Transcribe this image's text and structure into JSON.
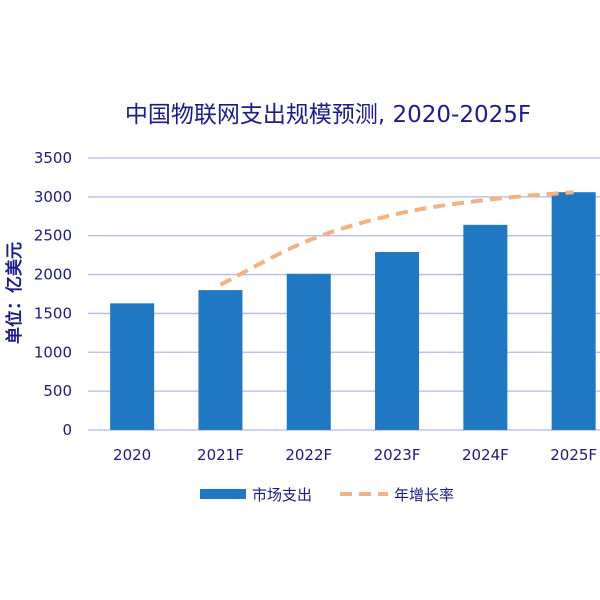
{
  "chart_data": {
    "type": "bar",
    "title": "中国物联网支出规模预测, 2020-2025F",
    "xlabel": "",
    "ylabel": "单位：亿美元",
    "categories": [
      "2020",
      "2021F",
      "2022F",
      "2023F",
      "2024F",
      "2025F"
    ],
    "yticks": [
      0,
      500,
      1000,
      1500,
      2000,
      2500,
      3000,
      3500
    ],
    "ylim": [
      0,
      3500
    ],
    "grid": true,
    "legend_position": "bottom",
    "series": [
      {
        "name": "市场支出",
        "type": "bar",
        "values": [
          1630,
          1800,
          2010,
          2290,
          2640,
          3060
        ],
        "color": "#1f78c1"
      },
      {
        "name": "年增长率",
        "type": "line",
        "style": "dashed",
        "values": [
          null,
          1870,
          2440,
          2780,
          2960,
          3060
        ],
        "color": "#f4b183"
      }
    ]
  },
  "colors": {
    "text": "#1b1b80",
    "grid": "#b3b8ee",
    "bar": "#1f78c1",
    "line": "#f4b183"
  }
}
